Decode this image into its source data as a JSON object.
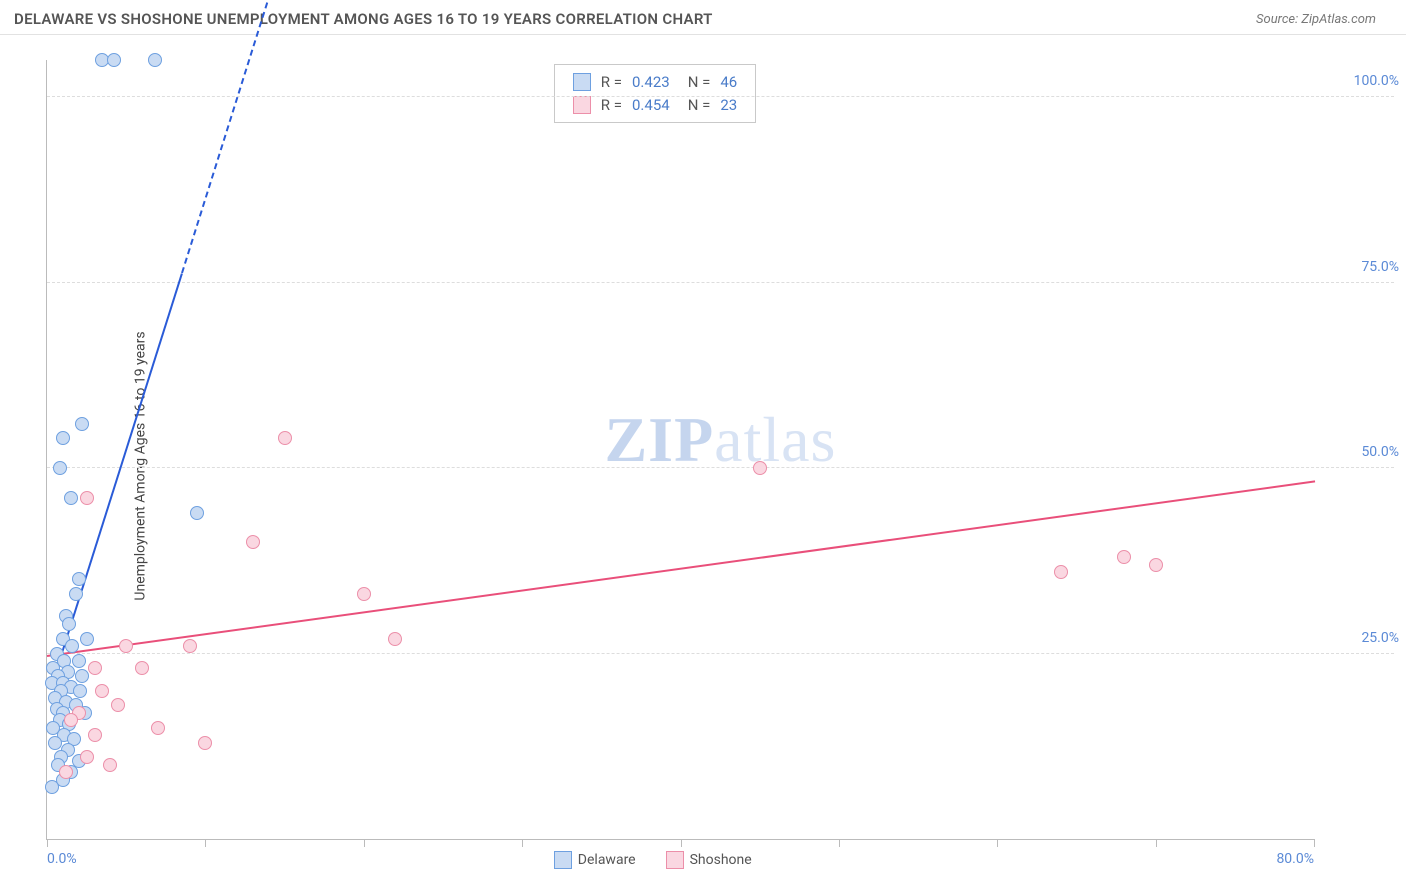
{
  "header": {
    "title": "DELAWARE VS SHOSHONE UNEMPLOYMENT AMONG AGES 16 TO 19 YEARS CORRELATION CHART",
    "source": "Source: ZipAtlas.com"
  },
  "chart": {
    "type": "scatter",
    "y_axis_label": "Unemployment Among Ages 16 to 19 years",
    "background_color": "#ffffff",
    "grid_color": "#dddddd",
    "axis_color": "#bbbbbb",
    "tick_label_color": "#5b8ad6",
    "xlim": [
      0,
      80
    ],
    "ylim": [
      0,
      105
    ],
    "x_ticks": [
      0,
      10,
      20,
      30,
      40,
      50,
      60,
      70,
      80
    ],
    "y_ticks": [
      25,
      50,
      75,
      100
    ],
    "x_tick_labels": {
      "0": "0.0%",
      "80": "80.0%"
    },
    "y_tick_labels": {
      "25": "25.0%",
      "50": "50.0%",
      "75": "75.0%",
      "100": "100.0%"
    },
    "point_radius": 7,
    "point_stroke_width": 1.2,
    "series": [
      {
        "name": "Delaware",
        "fill": "#c9dbf3",
        "stroke": "#6ea0e0",
        "points": [
          [
            3.5,
            105
          ],
          [
            4.2,
            105
          ],
          [
            6.8,
            105
          ],
          [
            2.2,
            56
          ],
          [
            1.0,
            54
          ],
          [
            0.8,
            50
          ],
          [
            1.5,
            46
          ],
          [
            9.5,
            44
          ],
          [
            2.0,
            35
          ],
          [
            1.8,
            33
          ],
          [
            1.2,
            30
          ],
          [
            1.4,
            29
          ],
          [
            1.0,
            27
          ],
          [
            2.5,
            27
          ],
          [
            1.6,
            26
          ],
          [
            0.6,
            25
          ],
          [
            1.1,
            24
          ],
          [
            2.0,
            24
          ],
          [
            0.4,
            23
          ],
          [
            1.3,
            22.5
          ],
          [
            0.7,
            22
          ],
          [
            2.2,
            22
          ],
          [
            0.3,
            21
          ],
          [
            1.0,
            21
          ],
          [
            1.5,
            20.5
          ],
          [
            0.9,
            20
          ],
          [
            2.1,
            20
          ],
          [
            0.5,
            19
          ],
          [
            1.2,
            18.5
          ],
          [
            1.8,
            18
          ],
          [
            0.6,
            17.5
          ],
          [
            1.0,
            17
          ],
          [
            2.4,
            17
          ],
          [
            0.8,
            16
          ],
          [
            1.4,
            15.5
          ],
          [
            0.4,
            15
          ],
          [
            1.1,
            14
          ],
          [
            1.7,
            13.5
          ],
          [
            0.5,
            13
          ],
          [
            1.3,
            12
          ],
          [
            0.9,
            11
          ],
          [
            2.0,
            10.5
          ],
          [
            0.7,
            10
          ],
          [
            1.5,
            9
          ],
          [
            1.0,
            8
          ],
          [
            0.3,
            7
          ]
        ],
        "trend": {
          "x0": 0.5,
          "y0": 22,
          "x1": 8.5,
          "y1": 76,
          "dashed_x1": 15,
          "dashed_y1": 120,
          "color": "#2a5bd7"
        },
        "R": "0.423",
        "N": "46"
      },
      {
        "name": "Shoshone",
        "fill": "#fad7e1",
        "stroke": "#ec8fa9",
        "points": [
          [
            15,
            54
          ],
          [
            2.5,
            46
          ],
          [
            13,
            40
          ],
          [
            20,
            33
          ],
          [
            64,
            36
          ],
          [
            68,
            38
          ],
          [
            45,
            50
          ],
          [
            70,
            37
          ],
          [
            22,
            27
          ],
          [
            5,
            26
          ],
          [
            9,
            26
          ],
          [
            3,
            23
          ],
          [
            6,
            23
          ],
          [
            3.5,
            20
          ],
          [
            4.5,
            18
          ],
          [
            2.0,
            17
          ],
          [
            1.5,
            16
          ],
          [
            7,
            15
          ],
          [
            3,
            14
          ],
          [
            10,
            13
          ],
          [
            2.5,
            11
          ],
          [
            4,
            10
          ],
          [
            1.2,
            9
          ]
        ],
        "trend": {
          "x0": 0,
          "y0": 24.5,
          "x1": 80,
          "y1": 48,
          "color": "#e94f7a"
        },
        "R": "0.454",
        "N": "23"
      }
    ],
    "legend": {
      "labels": [
        "Delaware",
        "Shoshone"
      ]
    },
    "watermark": {
      "bold": "ZIP",
      "rest": "atlas"
    }
  }
}
